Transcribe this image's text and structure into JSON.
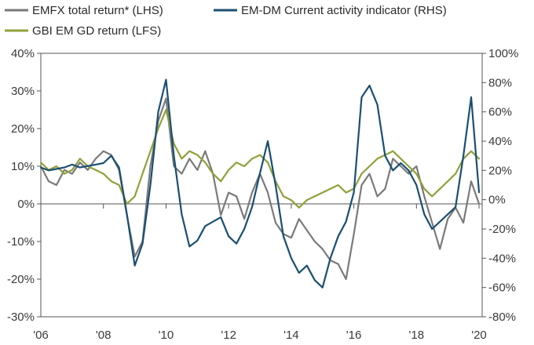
{
  "chart_data": {
    "type": "line",
    "title": "",
    "xlabel": "",
    "ylabel_left": "",
    "ylabel_right": "",
    "x_range": [
      2006,
      2020.1
    ],
    "x_ticks": [
      2006,
      2008,
      2010,
      2012,
      2014,
      2016,
      2018,
      2020
    ],
    "x_tick_labels": [
      "'06",
      "'08",
      "'10",
      "'12",
      "'14",
      "'16",
      "'18",
      "'20"
    ],
    "ylim_left": [
      -30,
      40
    ],
    "ylim_right": [
      -80,
      100
    ],
    "y_ticks_left": [
      "40%",
      "30%",
      "20%",
      "10%",
      "0%",
      "-10%",
      "-20%",
      "-30%"
    ],
    "y_ticks_right": [
      "100%",
      "80%",
      "60%",
      "40%",
      "20%",
      "0%",
      "-20%",
      "-40%",
      "-60%",
      "-80%"
    ],
    "zero_line": true,
    "grid": false,
    "legend_position": "top",
    "series": [
      {
        "name": "EMFX total return* (LHS)",
        "axis": "left",
        "color": "#7a7a7a",
        "x": [
          2006.0,
          2006.25,
          2006.5,
          2006.75,
          2007.0,
          2007.25,
          2007.5,
          2007.75,
          2008.0,
          2008.25,
          2008.5,
          2008.75,
          2009.0,
          2009.25,
          2009.5,
          2009.75,
          2010.0,
          2010.25,
          2010.5,
          2010.75,
          2011.0,
          2011.25,
          2011.5,
          2011.75,
          2012.0,
          2012.25,
          2012.5,
          2012.75,
          2013.0,
          2013.25,
          2013.5,
          2013.75,
          2014.0,
          2014.25,
          2014.5,
          2014.75,
          2015.0,
          2015.25,
          2015.5,
          2015.75,
          2016.0,
          2016.25,
          2016.5,
          2016.75,
          2017.0,
          2017.25,
          2017.5,
          2017.75,
          2018.0,
          2018.25,
          2018.5,
          2018.75,
          2019.0,
          2019.25,
          2019.5,
          2019.75,
          2020.0
        ],
        "values": [
          10,
          6,
          5,
          9,
          8,
          11,
          9,
          12,
          14,
          13,
          9,
          -3,
          -14,
          -10,
          10,
          22,
          28,
          10,
          8,
          12,
          9,
          14,
          8,
          -3,
          3,
          2,
          -4,
          3,
          8,
          3,
          -5,
          -8,
          -9,
          -4,
          -7,
          -10,
          -12,
          -15,
          -16,
          -20,
          -8,
          5,
          8,
          2,
          4,
          12,
          10,
          8,
          10,
          2,
          -5,
          -12,
          -4,
          -1,
          -5,
          6,
          0
        ]
      },
      {
        "name": "GBI EM GD return (LFS)",
        "axis": "left",
        "color": "#8fa13a",
        "x": [
          2006.0,
          2006.25,
          2006.5,
          2006.75,
          2007.0,
          2007.25,
          2007.5,
          2007.75,
          2008.0,
          2008.25,
          2008.5,
          2008.75,
          2009.0,
          2009.25,
          2009.5,
          2009.75,
          2010.0,
          2010.25,
          2010.5,
          2010.75,
          2011.0,
          2011.25,
          2011.5,
          2011.75,
          2012.0,
          2012.25,
          2012.5,
          2012.75,
          2013.0,
          2013.25,
          2013.5,
          2013.75,
          2014.0,
          2014.25,
          2014.5,
          2014.75,
          2015.0,
          2015.25,
          2015.5,
          2015.75,
          2016.0,
          2016.25,
          2016.5,
          2016.75,
          2017.0,
          2017.25,
          2017.5,
          2017.75,
          2018.0,
          2018.25,
          2018.5,
          2018.75,
          2019.0,
          2019.25,
          2019.5,
          2019.75,
          2020.0
        ],
        "values": [
          11,
          9,
          10,
          8,
          9,
          12,
          10,
          9,
          8,
          6,
          5,
          0,
          2,
          8,
          14,
          20,
          25,
          16,
          12,
          14,
          13,
          11,
          8,
          6,
          9,
          11,
          10,
          12,
          13,
          11,
          6,
          2,
          1,
          -1,
          1,
          2,
          3,
          4,
          5,
          3,
          4,
          8,
          10,
          12,
          13,
          14,
          12,
          10,
          8,
          4,
          2,
          4,
          6,
          8,
          12,
          14,
          12
        ]
      },
      {
        "name": "EM-DM Current activity indicator (RHS)",
        "axis": "right",
        "color": "#1a4f72",
        "x": [
          2006.0,
          2006.25,
          2006.5,
          2006.75,
          2007.0,
          2007.25,
          2007.5,
          2007.75,
          2008.0,
          2008.25,
          2008.5,
          2008.75,
          2009.0,
          2009.25,
          2009.5,
          2009.75,
          2010.0,
          2010.25,
          2010.5,
          2010.75,
          2011.0,
          2011.25,
          2011.5,
          2011.75,
          2012.0,
          2012.25,
          2012.5,
          2012.75,
          2013.0,
          2013.25,
          2013.5,
          2013.75,
          2014.0,
          2014.25,
          2014.5,
          2014.75,
          2015.0,
          2015.25,
          2015.5,
          2015.75,
          2016.0,
          2016.25,
          2016.5,
          2016.75,
          2017.0,
          2017.25,
          2017.5,
          2017.75,
          2018.0,
          2018.25,
          2018.5,
          2018.75,
          2019.0,
          2019.25,
          2019.5,
          2019.75,
          2020.0
        ],
        "values": [
          22,
          20,
          21,
          22,
          24,
          22,
          23,
          24,
          25,
          30,
          22,
          -10,
          -45,
          -30,
          10,
          60,
          82,
          30,
          -10,
          -32,
          -28,
          -18,
          -15,
          -12,
          -25,
          -30,
          -20,
          -5,
          18,
          40,
          10,
          -25,
          -40,
          -50,
          -45,
          -55,
          -60,
          -40,
          -25,
          -15,
          5,
          70,
          78,
          65,
          30,
          20,
          25,
          20,
          10,
          -10,
          -20,
          -15,
          -10,
          -5,
          30,
          70,
          5
        ]
      }
    ]
  }
}
